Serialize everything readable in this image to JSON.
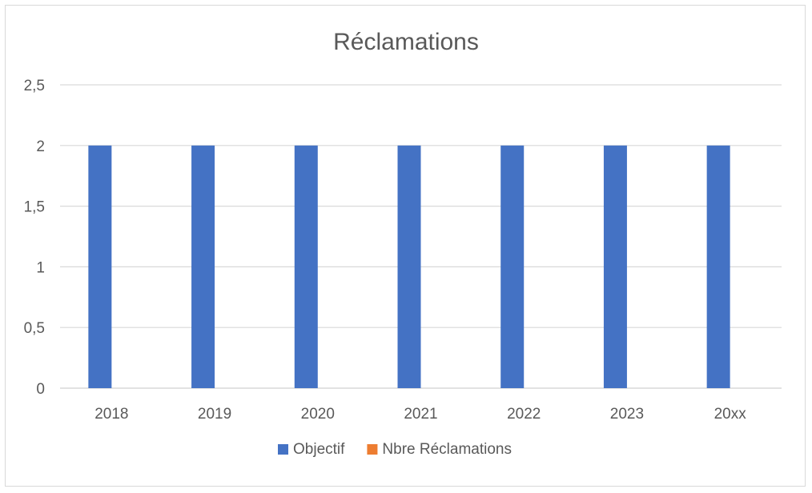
{
  "chart_data": {
    "type": "bar",
    "title": "Réclamations",
    "xlabel": "",
    "ylabel": "",
    "categories": [
      "2018",
      "2019",
      "2020",
      "2021",
      "2022",
      "2023",
      "20xx"
    ],
    "series": [
      {
        "name": "Objectif",
        "values": [
          2,
          2,
          2,
          2,
          2,
          2,
          2
        ],
        "color": "#4472c4"
      },
      {
        "name": "Nbre Réclamations",
        "values": [
          0,
          0,
          0,
          0,
          0,
          0,
          0
        ],
        "color": "#ed7d31"
      }
    ],
    "ylim": [
      0,
      2.5
    ],
    "yticks": [
      "0",
      "0,5",
      "1",
      "1,5",
      "2",
      "2,5"
    ],
    "grid": true,
    "legend_position": "bottom"
  }
}
